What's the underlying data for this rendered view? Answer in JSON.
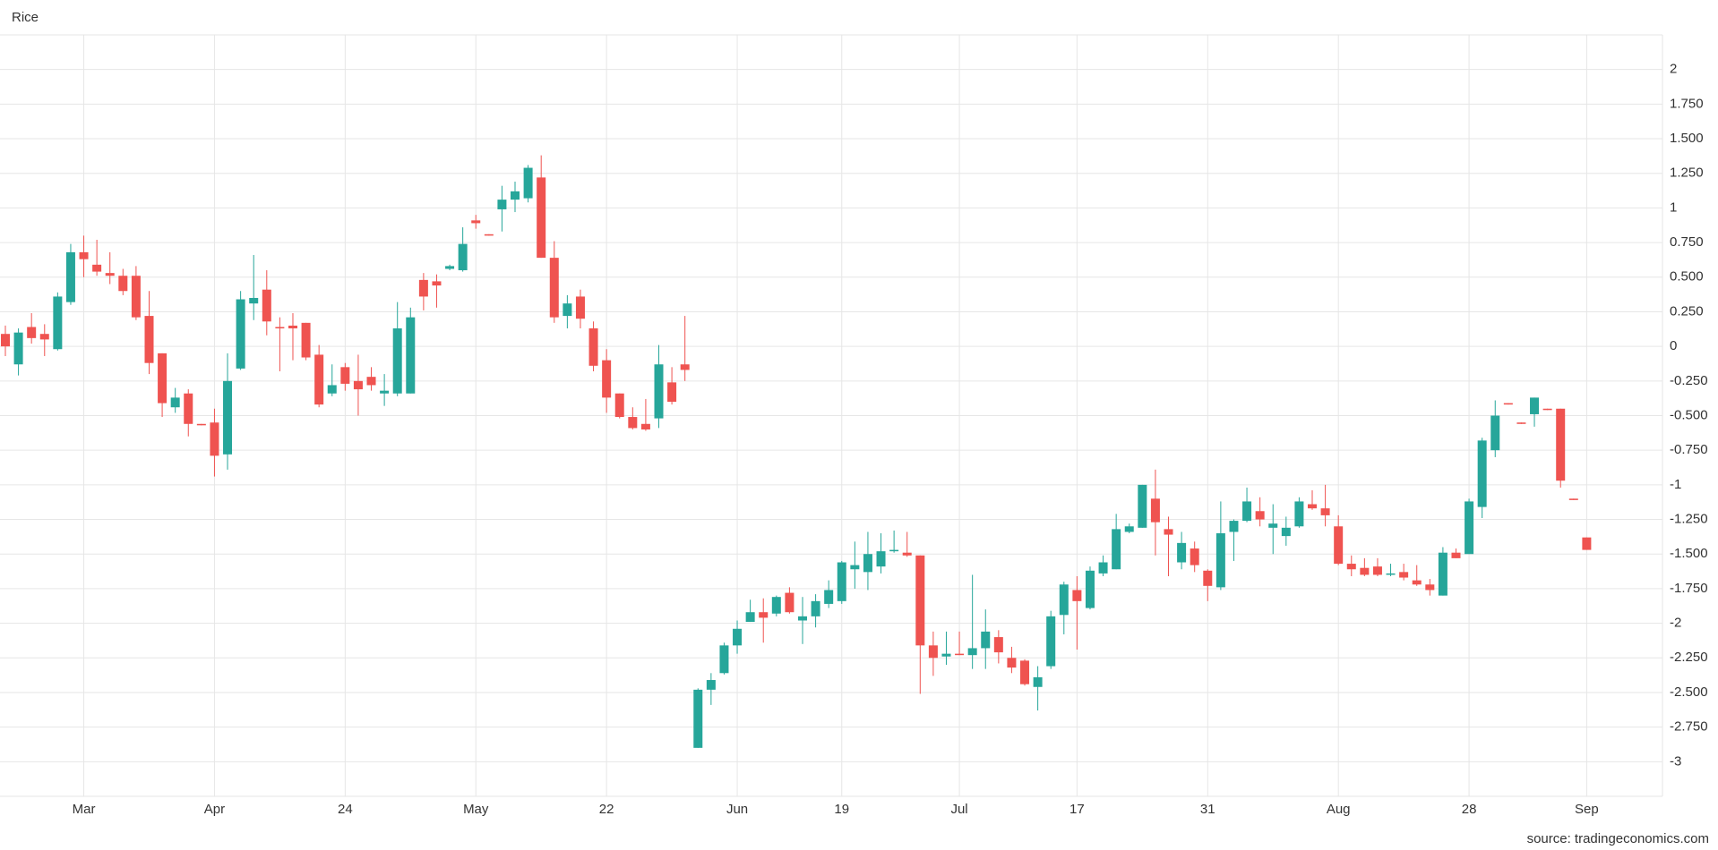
{
  "chart_data": {
    "type": "candlestick",
    "title": "Rice",
    "source": "source: tradingeconomics.com",
    "up_color": "#26a69a",
    "down_color": "#ef5350",
    "grid": true,
    "ylim": [
      -3.25,
      2.25
    ],
    "yticks": [
      2,
      {
        "value": 1.75,
        "label": "1.750"
      },
      {
        "value": 1.5,
        "label": "1.500"
      },
      {
        "value": 1.25,
        "label": "1.250"
      },
      1,
      {
        "value": 0.75,
        "label": "0.750"
      },
      {
        "value": 0.5,
        "label": "0.500"
      },
      {
        "value": 0.25,
        "label": "0.250"
      },
      0,
      {
        "value": -0.25,
        "label": "-0.250"
      },
      {
        "value": -0.5,
        "label": "-0.500"
      },
      {
        "value": -0.75,
        "label": "-0.750"
      },
      -1,
      {
        "value": -1.25,
        "label": "-1.250"
      },
      {
        "value": -1.5,
        "label": "-1.500"
      },
      {
        "value": -1.75,
        "label": "-1.750"
      },
      -2,
      {
        "value": -2.25,
        "label": "-2.250"
      },
      {
        "value": -2.5,
        "label": "-2.500"
      },
      {
        "value": -2.75,
        "label": "-2.750"
      },
      -3
    ],
    "categories": [
      null,
      null,
      null,
      null,
      null,
      null,
      "Mar",
      null,
      null,
      null,
      null,
      null,
      null,
      null,
      null,
      null,
      "Apr",
      null,
      null,
      null,
      null,
      null,
      null,
      null,
      null,
      null,
      "24",
      null,
      null,
      null,
      null,
      null,
      null,
      null,
      null,
      null,
      "May",
      null,
      null,
      null,
      null,
      null,
      null,
      null,
      null,
      null,
      "22",
      null,
      null,
      null,
      null,
      null,
      null,
      null,
      null,
      null,
      "Jun",
      null,
      null,
      null,
      null,
      null,
      null,
      null,
      "19",
      null,
      null,
      null,
      null,
      null,
      null,
      null,
      null,
      "Jul",
      null,
      null,
      null,
      null,
      null,
      null,
      null,
      null,
      "17",
      null,
      null,
      null,
      null,
      null,
      null,
      null,
      null,
      null,
      "31",
      null,
      null,
      null,
      null,
      null,
      null,
      null,
      null,
      null,
      "Aug",
      null,
      null,
      null,
      null,
      null,
      null,
      null,
      null,
      null,
      "28",
      null,
      null,
      null,
      null,
      null,
      null,
      null,
      null,
      "Sep"
    ],
    "open": [
      0.09,
      -0.13,
      0.14,
      0.09,
      -0.02,
      0.32,
      0.68,
      0.59,
      0.53,
      0.51,
      0.51,
      0.22,
      -0.05,
      -0.44,
      -0.34,
      -0.56,
      -0.55,
      -0.78,
      -0.16,
      0.31,
      0.41,
      0.14,
      0.15,
      0.17,
      -0.06,
      -0.34,
      -0.15,
      -0.25,
      -0.22,
      -0.34,
      -0.34,
      -0.34,
      0.48,
      0.47,
      0.56,
      0.55,
      0.91,
      0.81,
      0.99,
      1.06,
      1.07,
      1.22,
      0.64,
      0.22,
      0.36,
      0.13,
      -0.1,
      -0.34,
      -0.51,
      -0.56,
      -0.52,
      -0.26,
      -0.13,
      -2.9,
      -2.48,
      -2.36,
      -2.16,
      -1.99,
      -1.92,
      -1.93,
      -1.78,
      -1.98,
      -1.95,
      -1.86,
      -1.84,
      -1.61,
      -1.63,
      -1.59,
      -1.48,
      -1.49,
      -1.51,
      -2.16,
      -2.24,
      -2.22,
      -2.23,
      -2.18,
      -2.1,
      -2.25,
      -2.27,
      -2.46,
      -2.31,
      -1.94,
      -1.76,
      -1.89,
      -1.64,
      -1.61,
      -1.34,
      -1.31,
      -1.1,
      -1.32,
      -1.56,
      -1.46,
      -1.62,
      -1.74,
      -1.34,
      -1.26,
      -1.19,
      -1.31,
      -1.37,
      -1.3,
      -1.14,
      -1.17,
      -1.3,
      -1.57,
      -1.6,
      -1.59,
      -1.65,
      -1.63,
      -1.69,
      -1.72,
      -1.8,
      -1.49,
      -1.5,
      -1.16,
      -0.75,
      -0.41,
      -0.55,
      -0.49,
      -0.45,
      -0.45,
      -1.1,
      -1.38
    ],
    "high": [
      0.15,
      0.13,
      0.24,
      0.16,
      0.39,
      0.74,
      0.8,
      0.77,
      0.68,
      0.56,
      0.58,
      0.4,
      -0.05,
      -0.3,
      -0.31,
      -0.56,
      -0.45,
      -0.05,
      0.4,
      0.66,
      0.55,
      0.21,
      0.24,
      0.17,
      0.01,
      -0.13,
      -0.12,
      -0.06,
      -0.15,
      -0.2,
      0.32,
      0.28,
      0.53,
      0.52,
      0.59,
      0.86,
      0.95,
      0.81,
      1.16,
      1.19,
      1.31,
      1.38,
      0.76,
      0.37,
      0.41,
      0.18,
      -0.02,
      -0.34,
      -0.44,
      -0.38,
      0.01,
      -0.15,
      0.22,
      -2.47,
      -2.36,
      -2.14,
      -1.98,
      -1.83,
      -1.82,
      -1.8,
      -1.74,
      -1.81,
      -1.79,
      -1.69,
      -1.55,
      -1.41,
      -1.34,
      -1.35,
      -1.33,
      -1.34,
      -1.51,
      -2.06,
      -2.06,
      -2.06,
      -1.65,
      -1.9,
      -2.05,
      -2.17,
      -2.26,
      -2.31,
      -1.91,
      -1.7,
      -1.66,
      -1.59,
      -1.51,
      -1.21,
      -1.28,
      -1,
      -0.89,
      -1.23,
      -1.34,
      -1.41,
      -1.61,
      -1.12,
      -1.25,
      -1.02,
      -1.09,
      -1.14,
      -1.23,
      -1.09,
      -1.04,
      -1,
      -1.22,
      -1.51,
      -1.53,
      -1.53,
      -1.57,
      -1.57,
      -1.58,
      -1.68,
      -1.45,
      -1.46,
      -1.1,
      -0.66,
      -0.39,
      -0.41,
      -0.55,
      -0.37,
      -0.45,
      -0.45,
      -1.1,
      -1.38
    ],
    "low": [
      -0.07,
      -0.21,
      0.02,
      -0.07,
      -0.03,
      0.3,
      0.5,
      0.51,
      0.45,
      0.37,
      0.19,
      -0.2,
      -0.51,
      -0.48,
      -0.65,
      -0.57,
      -0.94,
      -0.89,
      -0.17,
      0.19,
      0.08,
      -0.18,
      -0.1,
      -0.1,
      -0.44,
      -0.36,
      -0.32,
      -0.5,
      -0.32,
      -0.43,
      -0.36,
      -0.34,
      0.26,
      0.28,
      0.55,
      0.54,
      0.85,
      0.8,
      0.83,
      0.97,
      1.04,
      0.64,
      0.17,
      0.13,
      0.13,
      -0.18,
      -0.48,
      -0.52,
      -0.6,
      -0.61,
      -0.59,
      -0.42,
      -0.25,
      -2.9,
      -2.59,
      -2.37,
      -2.22,
      -1.99,
      -2.14,
      -1.95,
      -1.93,
      -2.15,
      -2.03,
      -1.89,
      -1.86,
      -1.75,
      -1.76,
      -1.64,
      -1.49,
      -1.52,
      -2.51,
      -2.38,
      -2.3,
      -2.23,
      -2.33,
      -2.33,
      -2.29,
      -2.36,
      -2.45,
      -2.63,
      -2.33,
      -2.08,
      -2.19,
      -1.9,
      -1.66,
      -1.61,
      -1.35,
      -1.31,
      -1.51,
      -1.66,
      -1.61,
      -1.63,
      -1.84,
      -1.76,
      -1.55,
      -1.27,
      -1.3,
      -1.5,
      -1.44,
      -1.31,
      -1.18,
      -1.3,
      -1.58,
      -1.66,
      -1.66,
      -1.66,
      -1.66,
      -1.69,
      -1.73,
      -1.8,
      -1.8,
      -1.53,
      -1.5,
      -1.24,
      -0.8,
      -0.42,
      -0.56,
      -0.58,
      -0.46,
      -1.02,
      -1.11,
      -1.47
    ],
    "close": [
      0,
      0.1,
      0.06,
      0.05,
      0.36,
      0.68,
      0.63,
      0.54,
      0.51,
      0.4,
      0.21,
      -0.12,
      -0.41,
      -0.37,
      -0.56,
      -0.57,
      -0.79,
      -0.25,
      0.34,
      0.35,
      0.18,
      0.13,
      0.13,
      -0.08,
      -0.42,
      -0.28,
      -0.27,
      -0.31,
      -0.28,
      -0.32,
      0.13,
      0.21,
      0.36,
      0.44,
      0.58,
      0.74,
      0.89,
      0.8,
      1.06,
      1.12,
      1.29,
      0.64,
      0.21,
      0.31,
      0.2,
      -0.14,
      -0.37,
      -0.51,
      -0.59,
      -0.6,
      -0.13,
      -0.4,
      -0.17,
      -2.48,
      -2.41,
      -2.16,
      -2.04,
      -1.92,
      -1.96,
      -1.81,
      -1.92,
      -1.95,
      -1.84,
      -1.76,
      -1.56,
      -1.58,
      -1.5,
      -1.48,
      -1.47,
      -1.51,
      -2.16,
      -2.25,
      -2.22,
      -2.23,
      -2.18,
      -2.06,
      -2.21,
      -2.32,
      -2.44,
      -2.39,
      -1.95,
      -1.72,
      -1.84,
      -1.62,
      -1.56,
      -1.32,
      -1.3,
      -1,
      -1.27,
      -1.36,
      -1.42,
      -1.58,
      -1.73,
      -1.35,
      -1.26,
      -1.12,
      -1.25,
      -1.28,
      -1.31,
      -1.12,
      -1.17,
      -1.22,
      -1.57,
      -1.61,
      -1.65,
      -1.65,
      -1.64,
      -1.67,
      -1.72,
      -1.76,
      -1.49,
      -1.53,
      -1.12,
      -0.68,
      -0.5,
      -0.42,
      -0.56,
      -0.37,
      -0.46,
      -0.97,
      -1.11,
      -1.47
    ]
  }
}
